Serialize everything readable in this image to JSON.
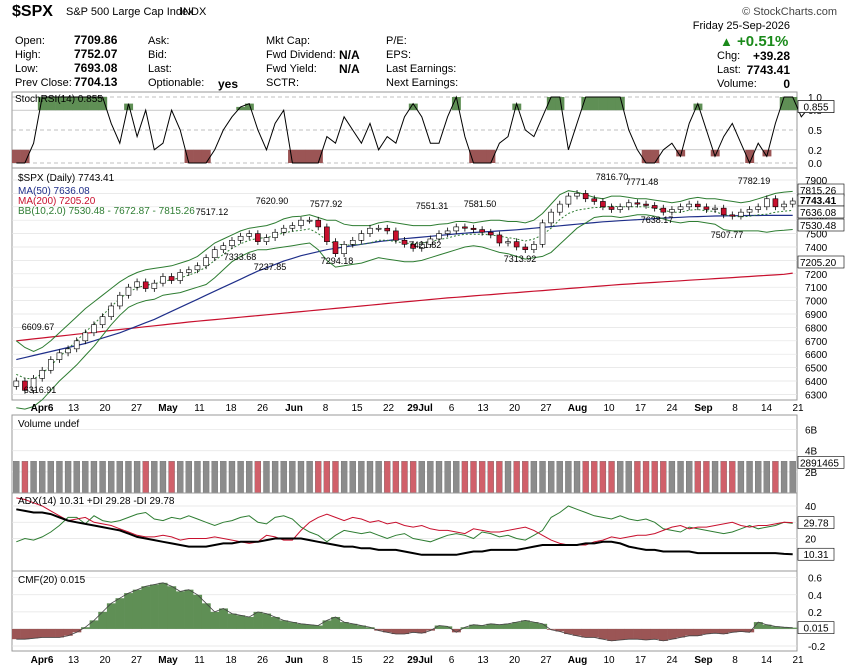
{
  "header": {
    "symbol": "$SPX",
    "name": "S&P 500 Large Cap Index",
    "exchange": "INDX",
    "logo": "© StockCharts.com",
    "date": "Friday  25-Sep-2026",
    "pct_change": "+0.51%",
    "chg_label": "Chg:",
    "chg_value": "+39.28",
    "last_label": "Last:",
    "last_value": "7743.41",
    "volume_label": "Volume:",
    "volume_value": "0"
  },
  "quote": {
    "open_label": "Open:",
    "open": "7709.86",
    "high_label": "High:",
    "high": "7752.07",
    "low_label": "Low:",
    "low": "7693.08",
    "prev_label": "Prev Close:",
    "prev": "7704.13",
    "ask_label": "Ask:",
    "bid_label": "Bid:",
    "last2_label": "Last:",
    "optionable_label": "Optionable:",
    "optionable": "yes",
    "mktcap_label": "Mkt Cap:",
    "fwddiv_label": "Fwd Dividend:",
    "fwddiv": "N/A",
    "fwdyld_label": "Fwd Yield:",
    "fwdyld": "N/A",
    "sctr_label": "SCTR:",
    "pe_label": "P/E:",
    "eps_label": "EPS:",
    "laste_label": "Last Earnings:",
    "nexte_label": "Next Earnings:"
  },
  "colors": {
    "up": "#ffffff",
    "down": "#c8102e",
    "ma50": "#1f2f8a",
    "ma200": "#c8102e",
    "bb": "#2e7d32",
    "mid": "#2e7d32",
    "stoch_fill": "#5f8f55",
    "stoch_neg": "#9b5555",
    "vol_up": "#8c8c8c",
    "vol_down": "#d0606a",
    "adx": "#000000",
    "pdi": "#2e7d32",
    "mdi": "#c8102e",
    "cmf_pos": "#5f8f55",
    "cmf_neg": "#9b5555"
  },
  "chart_data": [
    {
      "type": "line",
      "title": "StochRSI(14) 0.855",
      "ylim": [
        0,
        1
      ],
      "y_ticks": [
        "1.0",
        "0.8",
        "0.5",
        "0.2",
        "0.0"
      ],
      "last": "0.855",
      "values": [
        0,
        0,
        0.3,
        1,
        1,
        1,
        1,
        1,
        1,
        1,
        1,
        0.6,
        0.3,
        0.9,
        0.4,
        0.8,
        0.2,
        0.3,
        0.8,
        0.5,
        0,
        0,
        0,
        0.2,
        0.5,
        0.7,
        0.85,
        0.9,
        0.5,
        0.2,
        0.6,
        0.8,
        0,
        0,
        0,
        0,
        0.4,
        0.3,
        0.7,
        0.5,
        0.3,
        0.6,
        0.2,
        0.4,
        0.3,
        0.7,
        0.9,
        0.7,
        0.3,
        0.3,
        0.7,
        1,
        0.4,
        0,
        0,
        0,
        0.3,
        0.4,
        0.9,
        0.5,
        0.4,
        0.7,
        1,
        1,
        0.2,
        0.6,
        1,
        1,
        1,
        1,
        1,
        0.5,
        0.2,
        0,
        0,
        0.2,
        0.3,
        0.1,
        0.6,
        0.9,
        0.5,
        0.1,
        0.4,
        0.6,
        0.3,
        0,
        0.3,
        0.1,
        0.6,
        1,
        1,
        0.7,
        0.855
      ]
    },
    {
      "type": "candlestick",
      "title": "$SPX (Daily) 7743.41",
      "legend": [
        "MA(50) 7636.08",
        "MA(200) 7205.20",
        "BB(10,2.0) 7530.48 - 7672.87 - 7815.26"
      ],
      "ylim": [
        6200,
        7920
      ],
      "y_ticks": [
        7900,
        7800,
        7700,
        7600,
        7500,
        7400,
        7300,
        7200,
        7100,
        7000,
        6900,
        6800,
        6700,
        6600,
        6500,
        6400,
        6300
      ],
      "x_ticks": [
        "Apr6",
        "13",
        "20",
        "27",
        "May",
        "11",
        "18",
        "26",
        "Jun",
        "8",
        "15",
        "22",
        "29Jul",
        "6",
        "13",
        "20",
        "27",
        "Aug",
        "10",
        "17",
        "24",
        "Sep",
        "8",
        "14",
        "21"
      ],
      "annotations": [
        "6316.91",
        "6609.67",
        "7333.68",
        "7517.12",
        "7620.90",
        "7237.85",
        "7577.92",
        "7294.18",
        "7551.31",
        "7421.82",
        "7581.50",
        "7313.92",
        "7816.70",
        "7771.48",
        "7638.17",
        "7782.19",
        "7507.77"
      ],
      "price_labels": [
        "7815.26",
        "7743.41",
        "7636.08",
        "7530.48",
        "7205.20"
      ],
      "closes": [
        6400,
        6330,
        6420,
        6480,
        6560,
        6610,
        6640,
        6700,
        6760,
        6820,
        6880,
        6960,
        7040,
        7100,
        7140,
        7090,
        7130,
        7180,
        7150,
        7210,
        7230,
        7260,
        7320,
        7380,
        7410,
        7450,
        7480,
        7500,
        7440,
        7470,
        7510,
        7540,
        7560,
        7600,
        7600,
        7550,
        7440,
        7350,
        7420,
        7450,
        7500,
        7540,
        7540,
        7520,
        7450,
        7420,
        7390,
        7420,
        7460,
        7500,
        7520,
        7550,
        7540,
        7530,
        7510,
        7490,
        7430,
        7440,
        7400,
        7380,
        7420,
        7580,
        7660,
        7720,
        7780,
        7800,
        7760,
        7740,
        7700,
        7680,
        7700,
        7730,
        7720,
        7710,
        7690,
        7660,
        7680,
        7700,
        7720,
        7700,
        7680,
        7690,
        7640,
        7630,
        7660,
        7680,
        7700,
        7760,
        7700,
        7720,
        7743.41
      ],
      "ma50": [
        6560,
        6575,
        6590,
        6605,
        6620,
        6635,
        6650,
        6665,
        6680,
        6700,
        6720,
        6740,
        6760,
        6785,
        6810,
        6835,
        6860,
        6890,
        6920,
        6950,
        6980,
        7010,
        7040,
        7070,
        7100,
        7130,
        7160,
        7190,
        7220,
        7245,
        7270,
        7295,
        7315,
        7335,
        7350,
        7365,
        7380,
        7390,
        7400,
        7410,
        7420,
        7430,
        7440,
        7448,
        7456,
        7462,
        7468,
        7474,
        7480,
        7486,
        7492,
        7498,
        7503,
        7508,
        7512,
        7516,
        7520,
        7524,
        7528,
        7534,
        7540,
        7546,
        7552,
        7558,
        7564,
        7570,
        7576,
        7582,
        7588,
        7592,
        7596,
        7600,
        7604,
        7608,
        7612,
        7616,
        7619,
        7622,
        7625,
        7627,
        7629,
        7631,
        7632,
        7633,
        7634,
        7635,
        7635,
        7636,
        7636,
        7636,
        7636.08
      ],
      "ma200": [
        6700,
        6707,
        6714,
        6721,
        6728,
        6735,
        6742,
        6749,
        6756,
        6763,
        6770,
        6777,
        6784,
        6791,
        6798,
        6805,
        6812,
        6819,
        6826,
        6833,
        6840,
        6846,
        6852,
        6858,
        6864,
        6870,
        6876,
        6882,
        6888,
        6894,
        6900,
        6906,
        6912,
        6918,
        6924,
        6930,
        6936,
        6942,
        6948,
        6954,
        6960,
        6966,
        6972,
        6978,
        6984,
        6990,
        6996,
        7002,
        7008,
        7014,
        7020,
        7025,
        7030,
        7035,
        7040,
        7045,
        7050,
        7055,
        7060,
        7065,
        7070,
        7075,
        7080,
        7085,
        7090,
        7095,
        7100,
        7105,
        7110,
        7115,
        7120,
        7124,
        7128,
        7132,
        7136,
        7140,
        7144,
        7148,
        7152,
        7156,
        7160,
        7164,
        7168,
        7172,
        7176,
        7180,
        7184,
        7188,
        7192,
        7196,
        7205.2
      ],
      "bb_upper": [
        6700,
        6650,
        6620,
        6650,
        6700,
        6760,
        6820,
        6880,
        6940,
        6990,
        7040,
        7090,
        7140,
        7180,
        7210,
        7230,
        7240,
        7250,
        7260,
        7280,
        7300,
        7330,
        7380,
        7430,
        7460,
        7490,
        7520,
        7540,
        7550,
        7560,
        7580,
        7610,
        7625,
        7630,
        7640,
        7620,
        7600,
        7600,
        7570,
        7560,
        7560,
        7560,
        7580,
        7590,
        7580,
        7570,
        7560,
        7560,
        7560,
        7570,
        7575,
        7590,
        7590,
        7580,
        7590,
        7600,
        7600,
        7590,
        7590,
        7580,
        7600,
        7650,
        7720,
        7790,
        7820,
        7810,
        7790,
        7770,
        7760,
        7780,
        7780,
        7770,
        7760,
        7760,
        7750,
        7740,
        7730,
        7740,
        7760,
        7770,
        7760,
        7760,
        7750,
        7740,
        7730,
        7740,
        7760,
        7780,
        7800,
        7810,
        7815.26
      ],
      "bb_lower": [
        6200,
        6190,
        6210,
        6260,
        6330,
        6400,
        6460,
        6520,
        6590,
        6660,
        6740,
        6820,
        6890,
        6950,
        6980,
        7000,
        7010,
        7040,
        7050,
        7060,
        7080,
        7100,
        7120,
        7170,
        7230,
        7290,
        7330,
        7360,
        7380,
        7380,
        7390,
        7400,
        7410,
        7420,
        7430,
        7380,
        7300,
        7250,
        7260,
        7270,
        7280,
        7300,
        7320,
        7310,
        7300,
        7290,
        7290,
        7300,
        7320,
        7340,
        7360,
        7380,
        7400,
        7410,
        7400,
        7380,
        7360,
        7350,
        7330,
        7310,
        7320,
        7330,
        7360,
        7420,
        7480,
        7540,
        7580,
        7620,
        7630,
        7630,
        7620,
        7630,
        7640,
        7640,
        7630,
        7610,
        7590,
        7580,
        7590,
        7590,
        7580,
        7570,
        7530,
        7520,
        7520,
        7520,
        7520,
        7510,
        7520,
        7525,
        7530.48
      ]
    },
    {
      "type": "bar",
      "title": "Volume undef",
      "y_ticks": [
        "6B",
        "4B",
        "2B"
      ],
      "last_label": "2891465",
      "ylim": [
        0,
        7
      ],
      "values": [
        3,
        3,
        3,
        3,
        3,
        3,
        3,
        3,
        3,
        3,
        3,
        3,
        3,
        3,
        3,
        3,
        3,
        3,
        3,
        3,
        3,
        3,
        3,
        3,
        3,
        3,
        3,
        3,
        3,
        3,
        3,
        3,
        3,
        3,
        3,
        3,
        3,
        3,
        3,
        3,
        3,
        3,
        3,
        3,
        3,
        3,
        3,
        3,
        3,
        3,
        3,
        3,
        3,
        3,
        3,
        3,
        3,
        3,
        3,
        3,
        3,
        3,
        3,
        3,
        3,
        3,
        3,
        3,
        3,
        3,
        3,
        3,
        3,
        3,
        3,
        3,
        3,
        3,
        3,
        3,
        3,
        3,
        3,
        3,
        3,
        3,
        3,
        3,
        3,
        3,
        3
      ]
    },
    {
      "type": "line",
      "title": "ADX(14) 10.31 +DI 29.28 -DI 29.78",
      "ylim": [
        0,
        48
      ],
      "y_ticks": [
        "40",
        "30",
        "20"
      ],
      "price_labels": [
        "29.78",
        "10.31"
      ],
      "adx": [
        38,
        37,
        36,
        36,
        35,
        33,
        31,
        30,
        29,
        28,
        27,
        26,
        25,
        23,
        21,
        20,
        19,
        18,
        17,
        16,
        15,
        15,
        15,
        16,
        17,
        17,
        18,
        18,
        18,
        19,
        20,
        20,
        20,
        20,
        19,
        18,
        17,
        16,
        15,
        15,
        14,
        14,
        13,
        13,
        13,
        12,
        11,
        10,
        10,
        10,
        10,
        10,
        11,
        12,
        12,
        13,
        13,
        13,
        13,
        14,
        15,
        16,
        16,
        16,
        16,
        16,
        17,
        17,
        18,
        18,
        17,
        15,
        14,
        13,
        13,
        12,
        12,
        12,
        12,
        11,
        11,
        11,
        11,
        11,
        11,
        11,
        11,
        11,
        11,
        10.5,
        10.31
      ],
      "plus_di": [
        18,
        20,
        19,
        21,
        24,
        28,
        33,
        33,
        29,
        34,
        31,
        30,
        31,
        33,
        35,
        36,
        32,
        31,
        33,
        32,
        34,
        32,
        30,
        28,
        30,
        31,
        33,
        34,
        30,
        29,
        33,
        34,
        32,
        27,
        24,
        22,
        18,
        22,
        25,
        24,
        23,
        24,
        22,
        20,
        22,
        23,
        20,
        19,
        18,
        20,
        22,
        23,
        22,
        20,
        24,
        23,
        21,
        22,
        20,
        19,
        22,
        25,
        33,
        36,
        40,
        38,
        36,
        34,
        33,
        32,
        34,
        32,
        31,
        32,
        30,
        26,
        25,
        24,
        27,
        26,
        25,
        24,
        23,
        24,
        26,
        28,
        26,
        27,
        28,
        30,
        29.28
      ],
      "minus_di": [
        45,
        44,
        42,
        40,
        37,
        34,
        31,
        32,
        33,
        30,
        29,
        28,
        26,
        24,
        22,
        21,
        21,
        22,
        21,
        19,
        20,
        20,
        20,
        21,
        20,
        19,
        18,
        17,
        18,
        22,
        21,
        19,
        19,
        25,
        30,
        33,
        35,
        33,
        31,
        33,
        32,
        30,
        31,
        29,
        30,
        28,
        27,
        28,
        26,
        25,
        25,
        24,
        23,
        26,
        25,
        24,
        24,
        25,
        26,
        27,
        25,
        22,
        19,
        17,
        16,
        16,
        16,
        18,
        19,
        21,
        20,
        21,
        22,
        22,
        23,
        25,
        27,
        28,
        26,
        27,
        27,
        28,
        29,
        30,
        28,
        27,
        28,
        28,
        29,
        30,
        29.78
      ]
    },
    {
      "type": "area",
      "title": "CMF(20) 0.015",
      "ylim": [
        -0.2,
        0.62
      ],
      "y_ticks": [
        "0.6",
        "0.4",
        "0.2",
        "0.0",
        "-0.2"
      ],
      "price_labels": [
        "0.015"
      ],
      "values": [
        -0.12,
        -0.12,
        -0.11,
        -0.1,
        -0.1,
        -0.1,
        -0.08,
        -0.04,
        0.02,
        0.1,
        0.2,
        0.3,
        0.36,
        0.42,
        0.46,
        0.5,
        0.52,
        0.54,
        0.5,
        0.44,
        0.46,
        0.4,
        0.3,
        0.2,
        0.24,
        0.18,
        0.16,
        0.14,
        0.2,
        0.18,
        0.14,
        0.1,
        0.08,
        0.06,
        0.05,
        0.04,
        0.1,
        0.14,
        0.08,
        0.06,
        0.04,
        0.02,
        -0.02,
        -0.04,
        -0.06,
        -0.06,
        -0.04,
        -0.05,
        -0.02,
        0.04,
        0.03,
        -0.04,
        0.02,
        0.05,
        0.04,
        0.06,
        0.05,
        0.06,
        0.08,
        0.1,
        0.08,
        0.06,
        -0.01,
        -0.03,
        -0.06,
        -0.08,
        -0.1,
        -0.1,
        -0.12,
        -0.14,
        -0.13,
        -0.12,
        -0.12,
        -0.13,
        -0.12,
        -0.14,
        -0.12,
        -0.1,
        -0.08,
        -0.08,
        -0.06,
        -0.05,
        -0.06,
        -0.04,
        -0.03,
        -0.04,
        0.08,
        0.05,
        0.03,
        0.02,
        0.015
      ]
    }
  ],
  "bottom_x_ticks": [
    "Apr6",
    "13",
    "20",
    "27",
    "May",
    "11",
    "18",
    "26",
    "Jun",
    "8",
    "15",
    "22",
    "29Jul",
    "6",
    "13",
    "20",
    "27",
    "Aug",
    "10",
    "17",
    "24",
    "Sep",
    "8",
    "14",
    "21"
  ]
}
